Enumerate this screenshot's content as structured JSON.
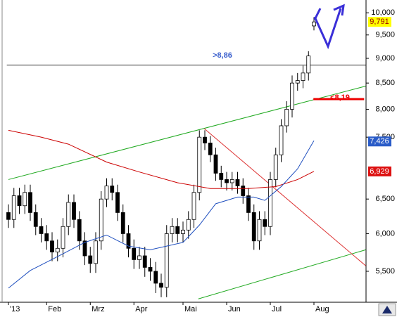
{
  "chart_data": {
    "type": "candlestick",
    "log_scale": true,
    "categories": [
      "'13",
      null,
      null,
      null,
      null,
      null,
      null,
      "Feb",
      null,
      null,
      null,
      null,
      null,
      null,
      null,
      "Mrz",
      null,
      null,
      null,
      null,
      null,
      null,
      null,
      "Apr",
      null,
      null,
      null,
      null,
      null,
      null,
      null,
      null,
      "Mai",
      null,
      null,
      null,
      null,
      null,
      null,
      null,
      "Jun",
      null,
      null,
      null,
      null,
      null,
      null,
      null,
      "Jul",
      null,
      null,
      null,
      null,
      null,
      null,
      null,
      "Aug"
    ],
    "open": [
      6300,
      6200,
      6550,
      6400,
      6600,
      6300,
      6100,
      6000,
      5900,
      5750,
      5800,
      6100,
      6450,
      6200,
      5900,
      5700,
      5600,
      5900,
      6500,
      6700,
      6600,
      6300,
      6000,
      5800,
      5650,
      5700,
      5550,
      5500,
      5350,
      5300,
      6000,
      6100,
      6000,
      6050,
      6200,
      6600,
      7500,
      7400,
      7200,
      6900,
      6800,
      6750,
      6800,
      6700,
      6550,
      6300,
      5900,
      6200,
      6100,
      6800,
      7200,
      7700,
      8000,
      8500,
      8550,
      8700,
      9700
    ],
    "high": [
      6420,
      6670,
      6670,
      6720,
      6720,
      6420,
      6220,
      6120,
      6020,
      5920,
      6220,
      6570,
      6570,
      6320,
      6020,
      5820,
      6020,
      6620,
      6820,
      6820,
      6720,
      6420,
      6120,
      5920,
      5820,
      5820,
      5670,
      5620,
      5470,
      6120,
      6220,
      6220,
      6170,
      6320,
      6720,
      7620,
      7620,
      7520,
      7320,
      7020,
      6920,
      6920,
      6920,
      6820,
      6670,
      6420,
      6320,
      6320,
      6920,
      7320,
      7820,
      8150,
      8650,
      8700,
      8850,
      9150,
      9900
    ],
    "low": [
      6080,
      6080,
      6280,
      6280,
      6180,
      5980,
      5880,
      5780,
      5630,
      5630,
      5680,
      5980,
      6080,
      5780,
      5580,
      5480,
      5480,
      5780,
      6380,
      6480,
      6180,
      5880,
      5680,
      5530,
      5530,
      5430,
      5380,
      5230,
      5180,
      5180,
      5880,
      5880,
      5880,
      5930,
      6080,
      6480,
      7280,
      7080,
      6780,
      6680,
      6630,
      6630,
      6580,
      6430,
      6180,
      5780,
      5780,
      5980,
      5980,
      6680,
      7080,
      7580,
      7850,
      8350,
      8400,
      8550,
      9600
    ],
    "close": [
      6200,
      6550,
      6400,
      6600,
      6300,
      6100,
      6000,
      5900,
      5750,
      5800,
      6100,
      6450,
      6200,
      5900,
      5700,
      5600,
      5900,
      6500,
      6700,
      6600,
      6300,
      6000,
      5800,
      5650,
      5700,
      5550,
      5500,
      5350,
      5300,
      6000,
      6100,
      6000,
      6050,
      6200,
      6600,
      7500,
      7400,
      7200,
      6900,
      6800,
      6750,
      6800,
      6700,
      6550,
      6300,
      5900,
      6200,
      6100,
      6800,
      7200,
      7700,
      8000,
      8500,
      8550,
      8700,
      9050,
      9791
    ],
    "ylim": [
      5120,
      10300
    ],
    "yticks": [
      {
        "value": 5500,
        "label": "5,500"
      },
      {
        "value": 6000,
        "label": "6,000"
      },
      {
        "value": 6500,
        "label": "6,500"
      },
      {
        "value": 7500,
        "label": "7,500"
      },
      {
        "value": 8000,
        "label": "8,000"
      },
      {
        "value": 8500,
        "label": "8,500"
      },
      {
        "value": 9000,
        "label": "9,000"
      },
      {
        "value": 9500,
        "label": "9,500"
      },
      {
        "value": 10000,
        "label": "10,000"
      }
    ],
    "up_color": "#ffffff",
    "down_color": "#000000",
    "lines": [
      {
        "color": "#cc0000",
        "x": [
          0,
          6,
          11,
          18,
          24,
          31,
          37,
          44,
          49,
          53,
          56
        ],
        "values": [
          7620,
          7500,
          7380,
          7080,
          6920,
          6750,
          6660,
          6660,
          6690,
          6800,
          6930
        ]
      },
      {
        "color": "#1f4fbf",
        "x": [
          0,
          4,
          9,
          14,
          18,
          22,
          26,
          29,
          32,
          35,
          38,
          42,
          45,
          47,
          50,
          53,
          56
        ],
        "values": [
          5290,
          5510,
          5690,
          5880,
          5980,
          5830,
          5780,
          5830,
          5880,
          6120,
          6430,
          6530,
          6530,
          6480,
          6690,
          6970,
          7440
        ]
      }
    ],
    "trendlines": [
      {
        "color": "#22aa22",
        "width": 1,
        "x": [
          0,
          65.5
        ],
        "values": [
          6800,
          8440
        ]
      },
      {
        "color": "#22aa22",
        "width": 1,
        "x": [
          34.8,
          65.5
        ],
        "values": [
          5160,
          5780
        ]
      },
      {
        "color": "#dd3333",
        "width": 1,
        "x": [
          35.9,
          65.5
        ],
        "values": [
          7650,
          5570
        ]
      },
      {
        "color": "#333333",
        "width": 1,
        "x": [
          -0.3,
          65.5
        ],
        "values": [
          8860,
          8860
        ]
      },
      {
        "color": "#ee0000",
        "width": 3,
        "x": [
          55.9,
          65.2
        ],
        "values": [
          8190,
          8190
        ]
      }
    ],
    "annotations": [
      {
        "text": ">8,86",
        "color": "#3a5fcd"
      },
      {
        "text": "<8,19",
        "color": "#ee0000"
      }
    ],
    "last_values": [
      {
        "value": 9791,
        "label": "9,791",
        "color": "#ffff00",
        "text_color": "#990000"
      },
      {
        "value": 7426,
        "label": "7,426",
        "color": "#2a5cc8",
        "text_color": "#ffffff"
      },
      {
        "value": 6929,
        "label": "6,929",
        "color": "#dd1111",
        "text_color": "#ffffff"
      }
    ]
  }
}
